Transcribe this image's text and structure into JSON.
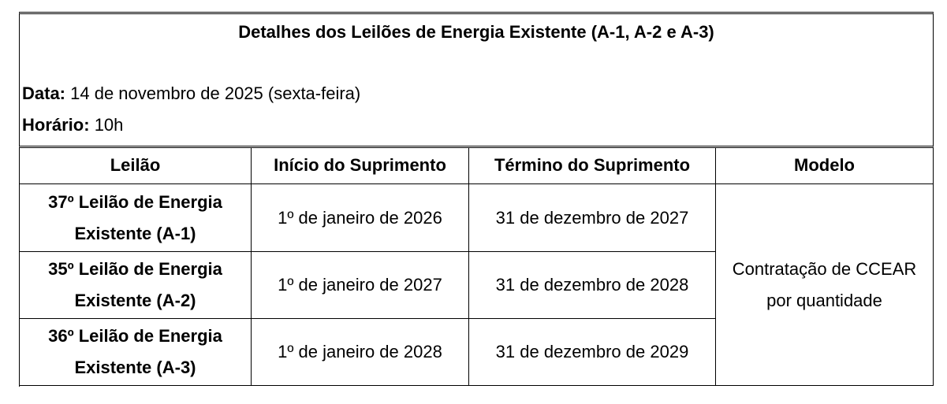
{
  "header": {
    "title": "Detalhes dos Leilões de Energia Existente (A-1, A-2 e A-3)",
    "date_label": "Data:",
    "date": "14 de novembro de 2025 (sexta-feira)",
    "time_label": "Horário:",
    "time": "10h"
  },
  "table": {
    "columns": [
      "Leilão",
      "Início do Suprimento",
      "Término do Suprimento",
      "Modelo"
    ],
    "rows": [
      [
        "37º Leilão de Energia Existente (A-1)",
        "1º de janeiro de 2026",
        "31 de dezembro de 2027"
      ],
      [
        "35º Leilão de Energia Existente (A-2)",
        "1º de janeiro de 2027",
        "31 de dezembro de 2028"
      ],
      [
        "36º Leilão de Energia Existente (A-3)",
        "1º de janeiro de 2028",
        "31 de dezembro de 2029"
      ]
    ],
    "model": "Contratação de CCEAR por quantidade"
  }
}
